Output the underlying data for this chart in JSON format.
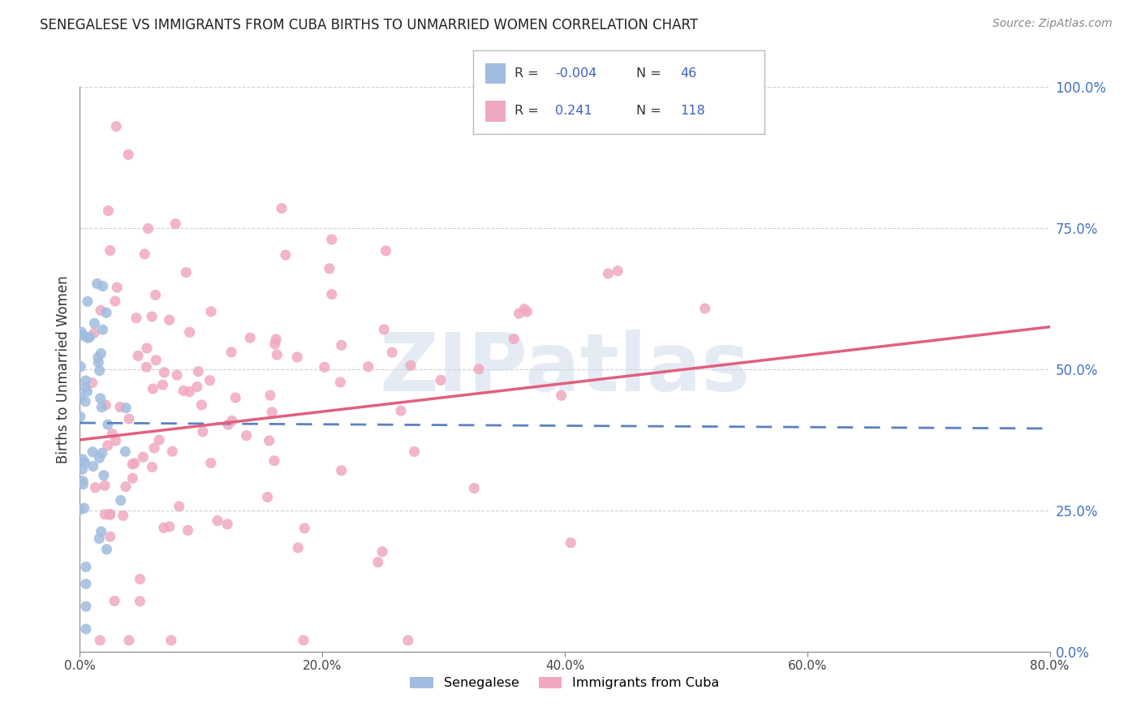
{
  "title": "SENEGALESE VS IMMIGRANTS FROM CUBA BIRTHS TO UNMARRIED WOMEN CORRELATION CHART",
  "source": "Source: ZipAtlas.com",
  "xlim": [
    0.0,
    0.8
  ],
  "ylim": [
    0.0,
    1.0
  ],
  "x_tick_vals": [
    0.0,
    0.2,
    0.4,
    0.6,
    0.8
  ],
  "y_tick_vals": [
    0.0,
    0.25,
    0.5,
    0.75,
    1.0
  ],
  "senegalese_color": "#a0bce0",
  "cuba_color": "#f0a8c0",
  "senegalese_trend_color": "#5a82c0",
  "cuba_trend_color": "#e06080",
  "background_color": "#ffffff",
  "watermark": "ZIPatlas",
  "watermark_color": "#ccd8ec",
  "legend_r1": "-0.004",
  "legend_n1": "46",
  "legend_r2": "0.241",
  "legend_n2": "118",
  "r_label_color": "#4060c0",
  "n_label_color": "#4060c0",
  "right_axis_color": "#4472c4",
  "ylabel": "Births to Unmarried Women",
  "trend_sen_start_y": 0.405,
  "trend_sen_end_y": 0.395,
  "trend_cuba_start_y": 0.375,
  "trend_cuba_end_y": 0.575
}
